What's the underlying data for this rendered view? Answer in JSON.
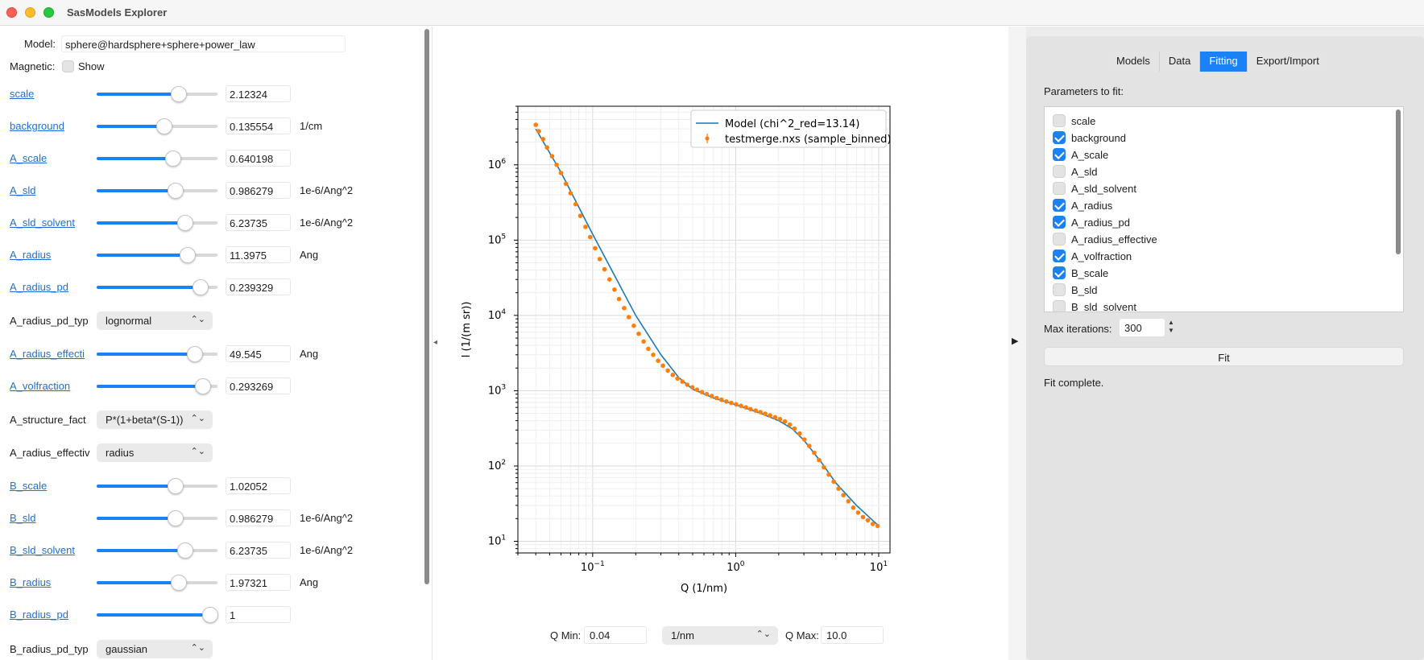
{
  "window": {
    "title": "SasModels Explorer"
  },
  "model": {
    "label": "Model:",
    "value": "sphere@hardsphere+sphere+power_law"
  },
  "magnetic": {
    "label": "Magnetic:",
    "show_label": "Show"
  },
  "parameters": [
    {
      "name": "scale",
      "value": "2.12324",
      "unit": "",
      "level": 0.68
    },
    {
      "name": "background",
      "value": "0.135554",
      "unit": "1/cm",
      "level": 0.56
    },
    {
      "name": "A_scale",
      "value": "0.640198",
      "unit": "",
      "level": 0.63
    },
    {
      "name": "A_sld",
      "value": "0.986279",
      "unit": "1e-6/Ang^2",
      "level": 0.65
    },
    {
      "name": "A_sld_solvent",
      "value": "6.23735",
      "unit": "1e-6/Ang^2",
      "level": 0.73
    },
    {
      "name": "A_radius",
      "value": "11.3975",
      "unit": "Ang",
      "level": 0.75
    },
    {
      "name": "A_radius_pd",
      "value": "0.239329",
      "unit": "",
      "level": 0.86
    }
  ],
  "choice_a_pd": {
    "label": "A_radius_pd_typ",
    "value": "lognormal"
  },
  "parameters2": [
    {
      "name": "A_radius_effecti",
      "value": "49.545",
      "unit": "Ang",
      "level": 0.81
    },
    {
      "name": "A_volfraction",
      "value": "0.293269",
      "unit": "",
      "level": 0.88
    }
  ],
  "choice_structure": {
    "label": "A_structure_fact",
    "value": "P*(1+beta*(S-1))"
  },
  "choice_effective": {
    "label": "A_radius_effectiv",
    "value": "radius"
  },
  "parameters3": [
    {
      "name": "B_scale",
      "value": "1.02052",
      "unit": "",
      "level": 0.65
    },
    {
      "name": "B_sld",
      "value": "0.986279",
      "unit": "1e-6/Ang^2",
      "level": 0.65
    },
    {
      "name": "B_sld_solvent",
      "value": "6.23735",
      "unit": "1e-6/Ang^2",
      "level": 0.73
    },
    {
      "name": "B_radius",
      "value": "1.97321",
      "unit": "Ang",
      "level": 0.68
    },
    {
      "name": "B_radius_pd",
      "value": "1",
      "unit": "",
      "level": 0.94
    }
  ],
  "choice_b_pd": {
    "label": "B_radius_pd_typ",
    "value": "gaussian"
  },
  "tabs": [
    "Models",
    "Data",
    "Fitting",
    "Export/Import"
  ],
  "active_tab": "Fitting",
  "fitting": {
    "params_label": "Parameters to fit:",
    "params": [
      {
        "name": "scale",
        "checked": false
      },
      {
        "name": "background",
        "checked": true
      },
      {
        "name": "A_scale",
        "checked": true
      },
      {
        "name": "A_sld",
        "checked": false
      },
      {
        "name": "A_sld_solvent",
        "checked": false
      },
      {
        "name": "A_radius",
        "checked": true
      },
      {
        "name": "A_radius_pd",
        "checked": true
      },
      {
        "name": "A_radius_effective",
        "checked": false
      },
      {
        "name": "A_volfraction",
        "checked": true
      },
      {
        "name": "B_scale",
        "checked": true
      },
      {
        "name": "B_sld",
        "checked": false
      },
      {
        "name": "B_sld_solvent",
        "checked": false
      }
    ],
    "max_iter_label": "Max iterations:",
    "max_iter_value": "300",
    "fit_label": "Fit",
    "status": "Fit complete."
  },
  "qrange": {
    "qmin_label": "Q Min:",
    "qmin": "0.04",
    "unit": "1/nm",
    "qmax_label": "Q Max:",
    "qmax": "10.0"
  },
  "chart_data": {
    "type": "line",
    "xlabel": "Q (1/nm)",
    "ylabel": "I (1/(m sr))",
    "xscale": "log",
    "yscale": "log",
    "xlim": [
      0.03,
      12
    ],
    "ylim": [
      7,
      6000000
    ],
    "x_tick_labels": [
      "10^-1",
      "10^0",
      "10^1"
    ],
    "y_tick_labels": [
      "10^1",
      "10^2",
      "10^3",
      "10^4",
      "10^5",
      "10^6"
    ],
    "grid": true,
    "legend_position": "top-right",
    "legend": [
      {
        "label": "Model (chi^2_red=13.14)",
        "color": "#1f77b4"
      },
      {
        "label": "testmerge.nxs (sample_binned)",
        "color": "#ff7f0e"
      }
    ],
    "series": [
      {
        "name": "Model (chi^2_red=13.14)",
        "style": "line",
        "color": "#1f77b4",
        "x": [
          0.04,
          0.06,
          0.1,
          0.15,
          0.2,
          0.3,
          0.4,
          0.5,
          0.7,
          1.0,
          1.5,
          2.0,
          2.5,
          3.0,
          4.0,
          5.0,
          7.0,
          10.0
        ],
        "y": [
          3000000,
          800000,
          120000,
          28000,
          10000,
          3000,
          1500,
          1050,
          800,
          650,
          500,
          400,
          310,
          220,
          110,
          60,
          30,
          16
        ]
      },
      {
        "name": "testmerge.nxs (sample_binned)",
        "style": "scatter",
        "color": "#ff7f0e",
        "x": [
          0.04,
          0.042,
          0.045,
          0.048,
          0.052,
          0.056,
          0.06,
          0.065,
          0.07,
          0.076,
          0.082,
          0.089,
          0.096,
          0.104,
          0.112,
          0.121,
          0.131,
          0.142,
          0.153,
          0.166,
          0.179,
          0.194,
          0.21,
          0.227,
          0.245,
          0.265,
          0.287,
          0.31,
          0.335,
          0.363,
          0.392,
          0.424,
          0.459,
          0.497,
          0.537,
          0.581,
          0.629,
          0.68,
          0.736,
          0.796,
          0.861,
          0.931,
          1.007,
          1.09,
          1.18,
          1.27,
          1.38,
          1.49,
          1.61,
          1.74,
          1.89,
          2.04,
          2.21,
          2.39,
          2.58,
          2.8,
          3.02,
          3.27,
          3.54,
          3.83,
          4.14,
          4.48,
          4.85,
          5.24,
          5.67,
          6.14,
          6.64,
          7.18,
          7.77,
          8.4,
          9.09,
          9.83
        ],
        "y": [
          3400000,
          2800000,
          2200000,
          1700000,
          1300000,
          1000000,
          780000,
          560000,
          420000,
          300000,
          210000,
          150000,
          110000,
          78000,
          56000,
          41000,
          30000,
          22000,
          16500,
          12500,
          9500,
          7300,
          5700,
          4500,
          3600,
          3000,
          2500,
          2150,
          1850,
          1620,
          1450,
          1320,
          1200,
          1110,
          1030,
          960,
          900,
          850,
          800,
          760,
          720,
          690,
          660,
          630,
          600,
          570,
          545,
          520,
          495,
          470,
          445,
          420,
          390,
          355,
          315,
          270,
          225,
          185,
          150,
          120,
          96,
          77,
          62,
          50,
          41,
          34,
          28,
          24,
          21,
          19,
          17,
          16
        ]
      }
    ]
  }
}
